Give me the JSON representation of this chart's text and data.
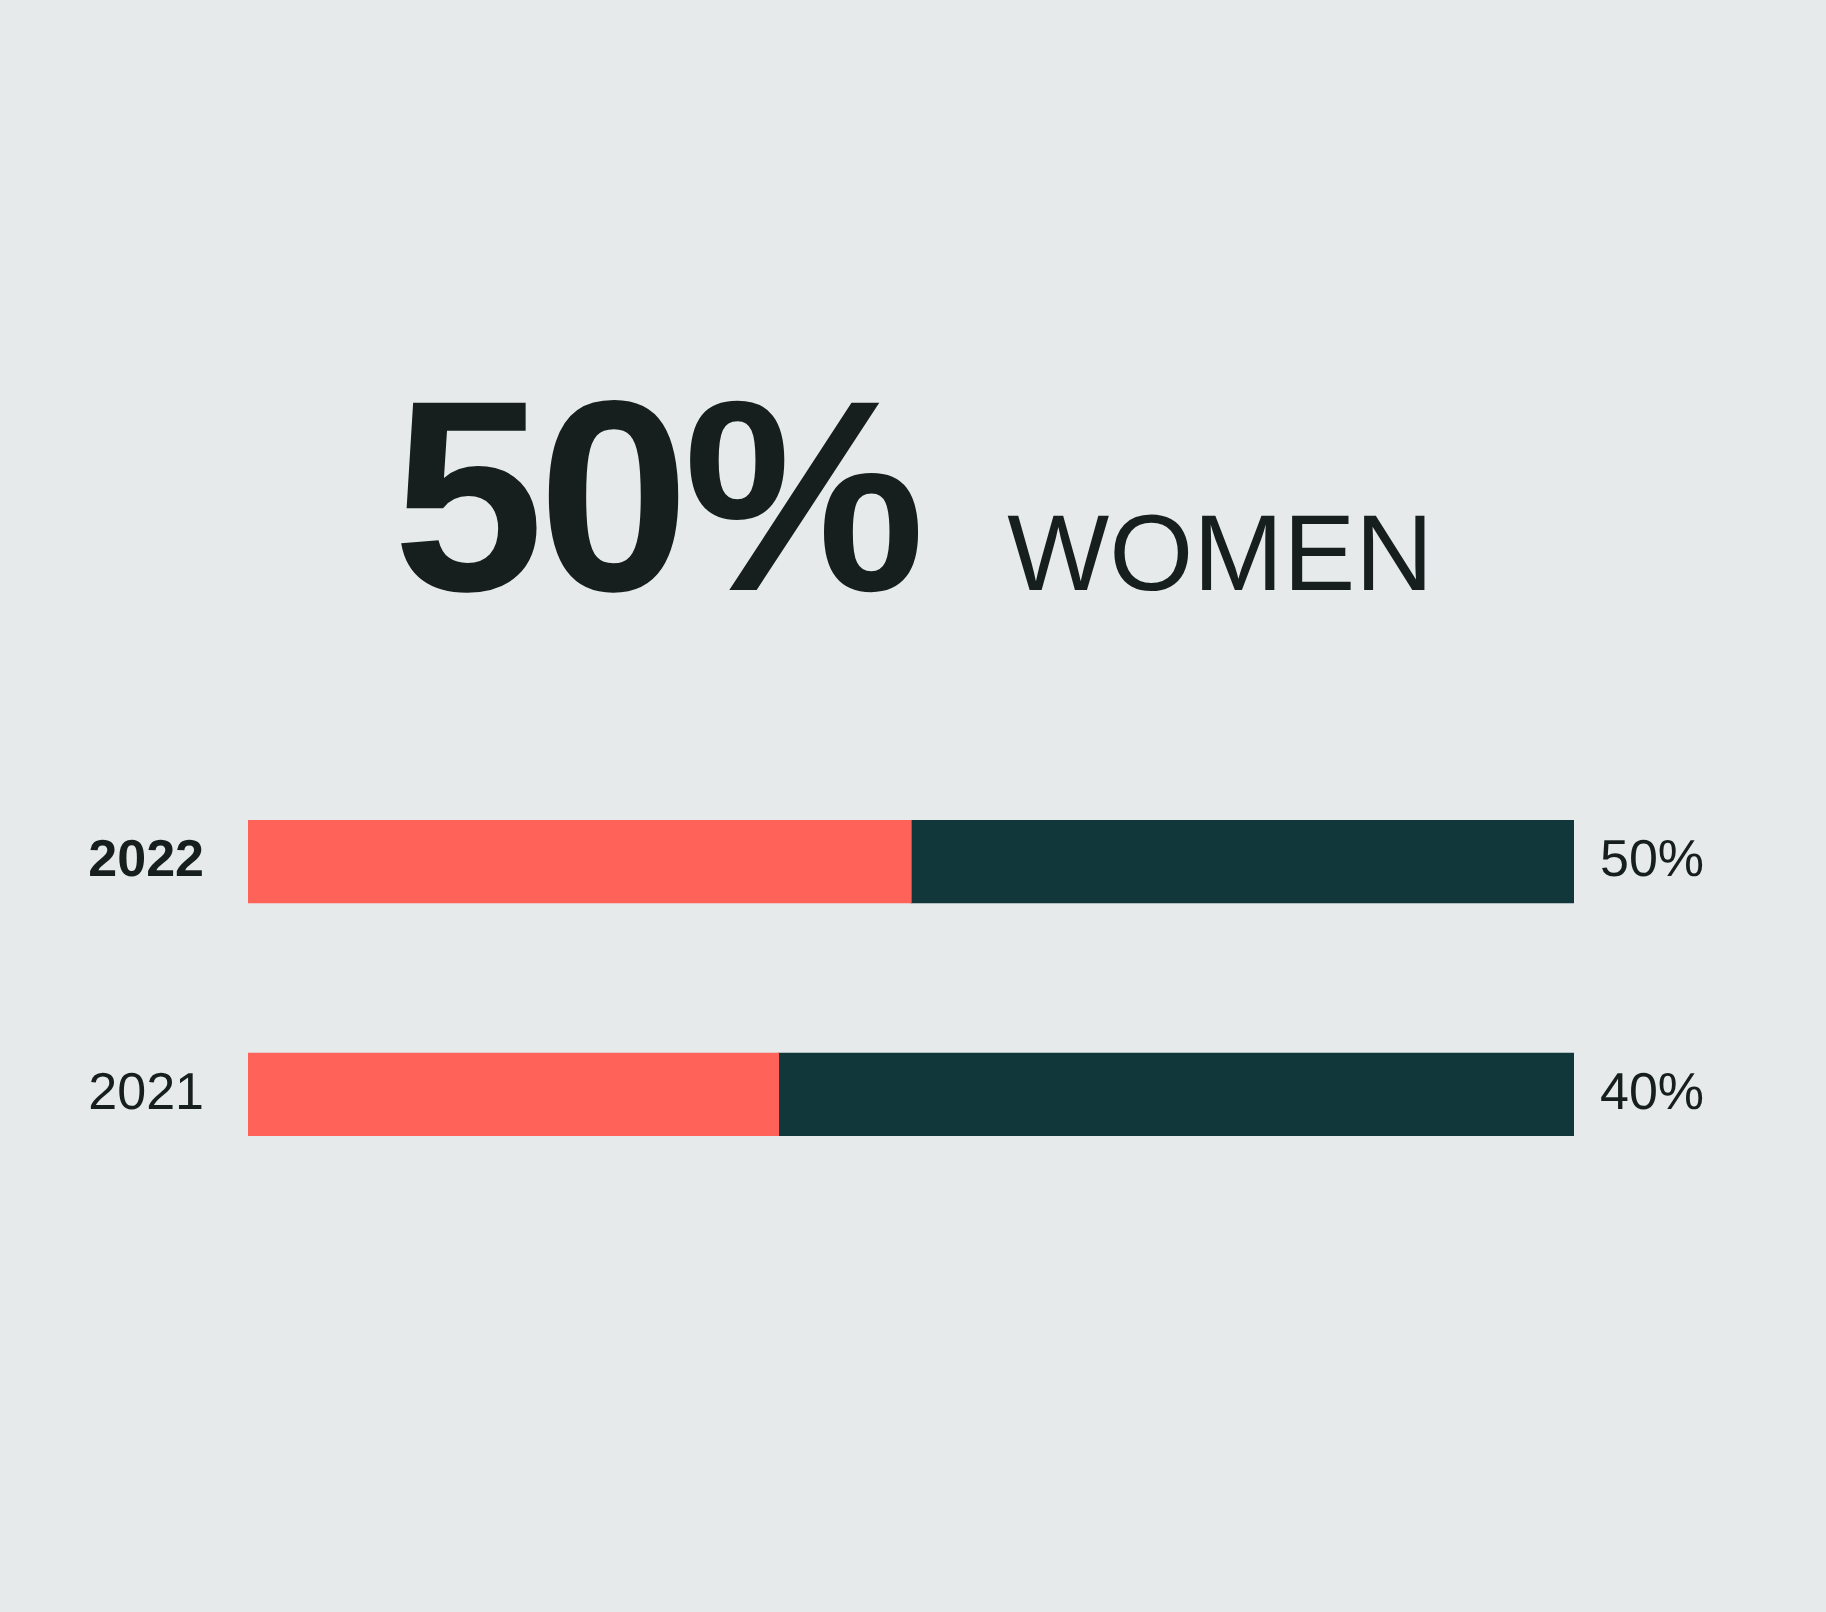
{
  "chart_data": {
    "type": "bar",
    "title": "50% WOMEN",
    "orientation": "horizontal",
    "stacked": true,
    "categories": [
      "2022",
      "2021"
    ],
    "series": [
      {
        "color": "#ff6259",
        "values": [
          50,
          40
        ],
        "value_labels": [
          "50%",
          "40%"
        ]
      },
      {
        "color": "#12373a",
        "values": [
          50,
          60
        ]
      }
    ],
    "xlim": [
      0,
      100
    ],
    "tick_labels": "y",
    "grid": false
  }
}
